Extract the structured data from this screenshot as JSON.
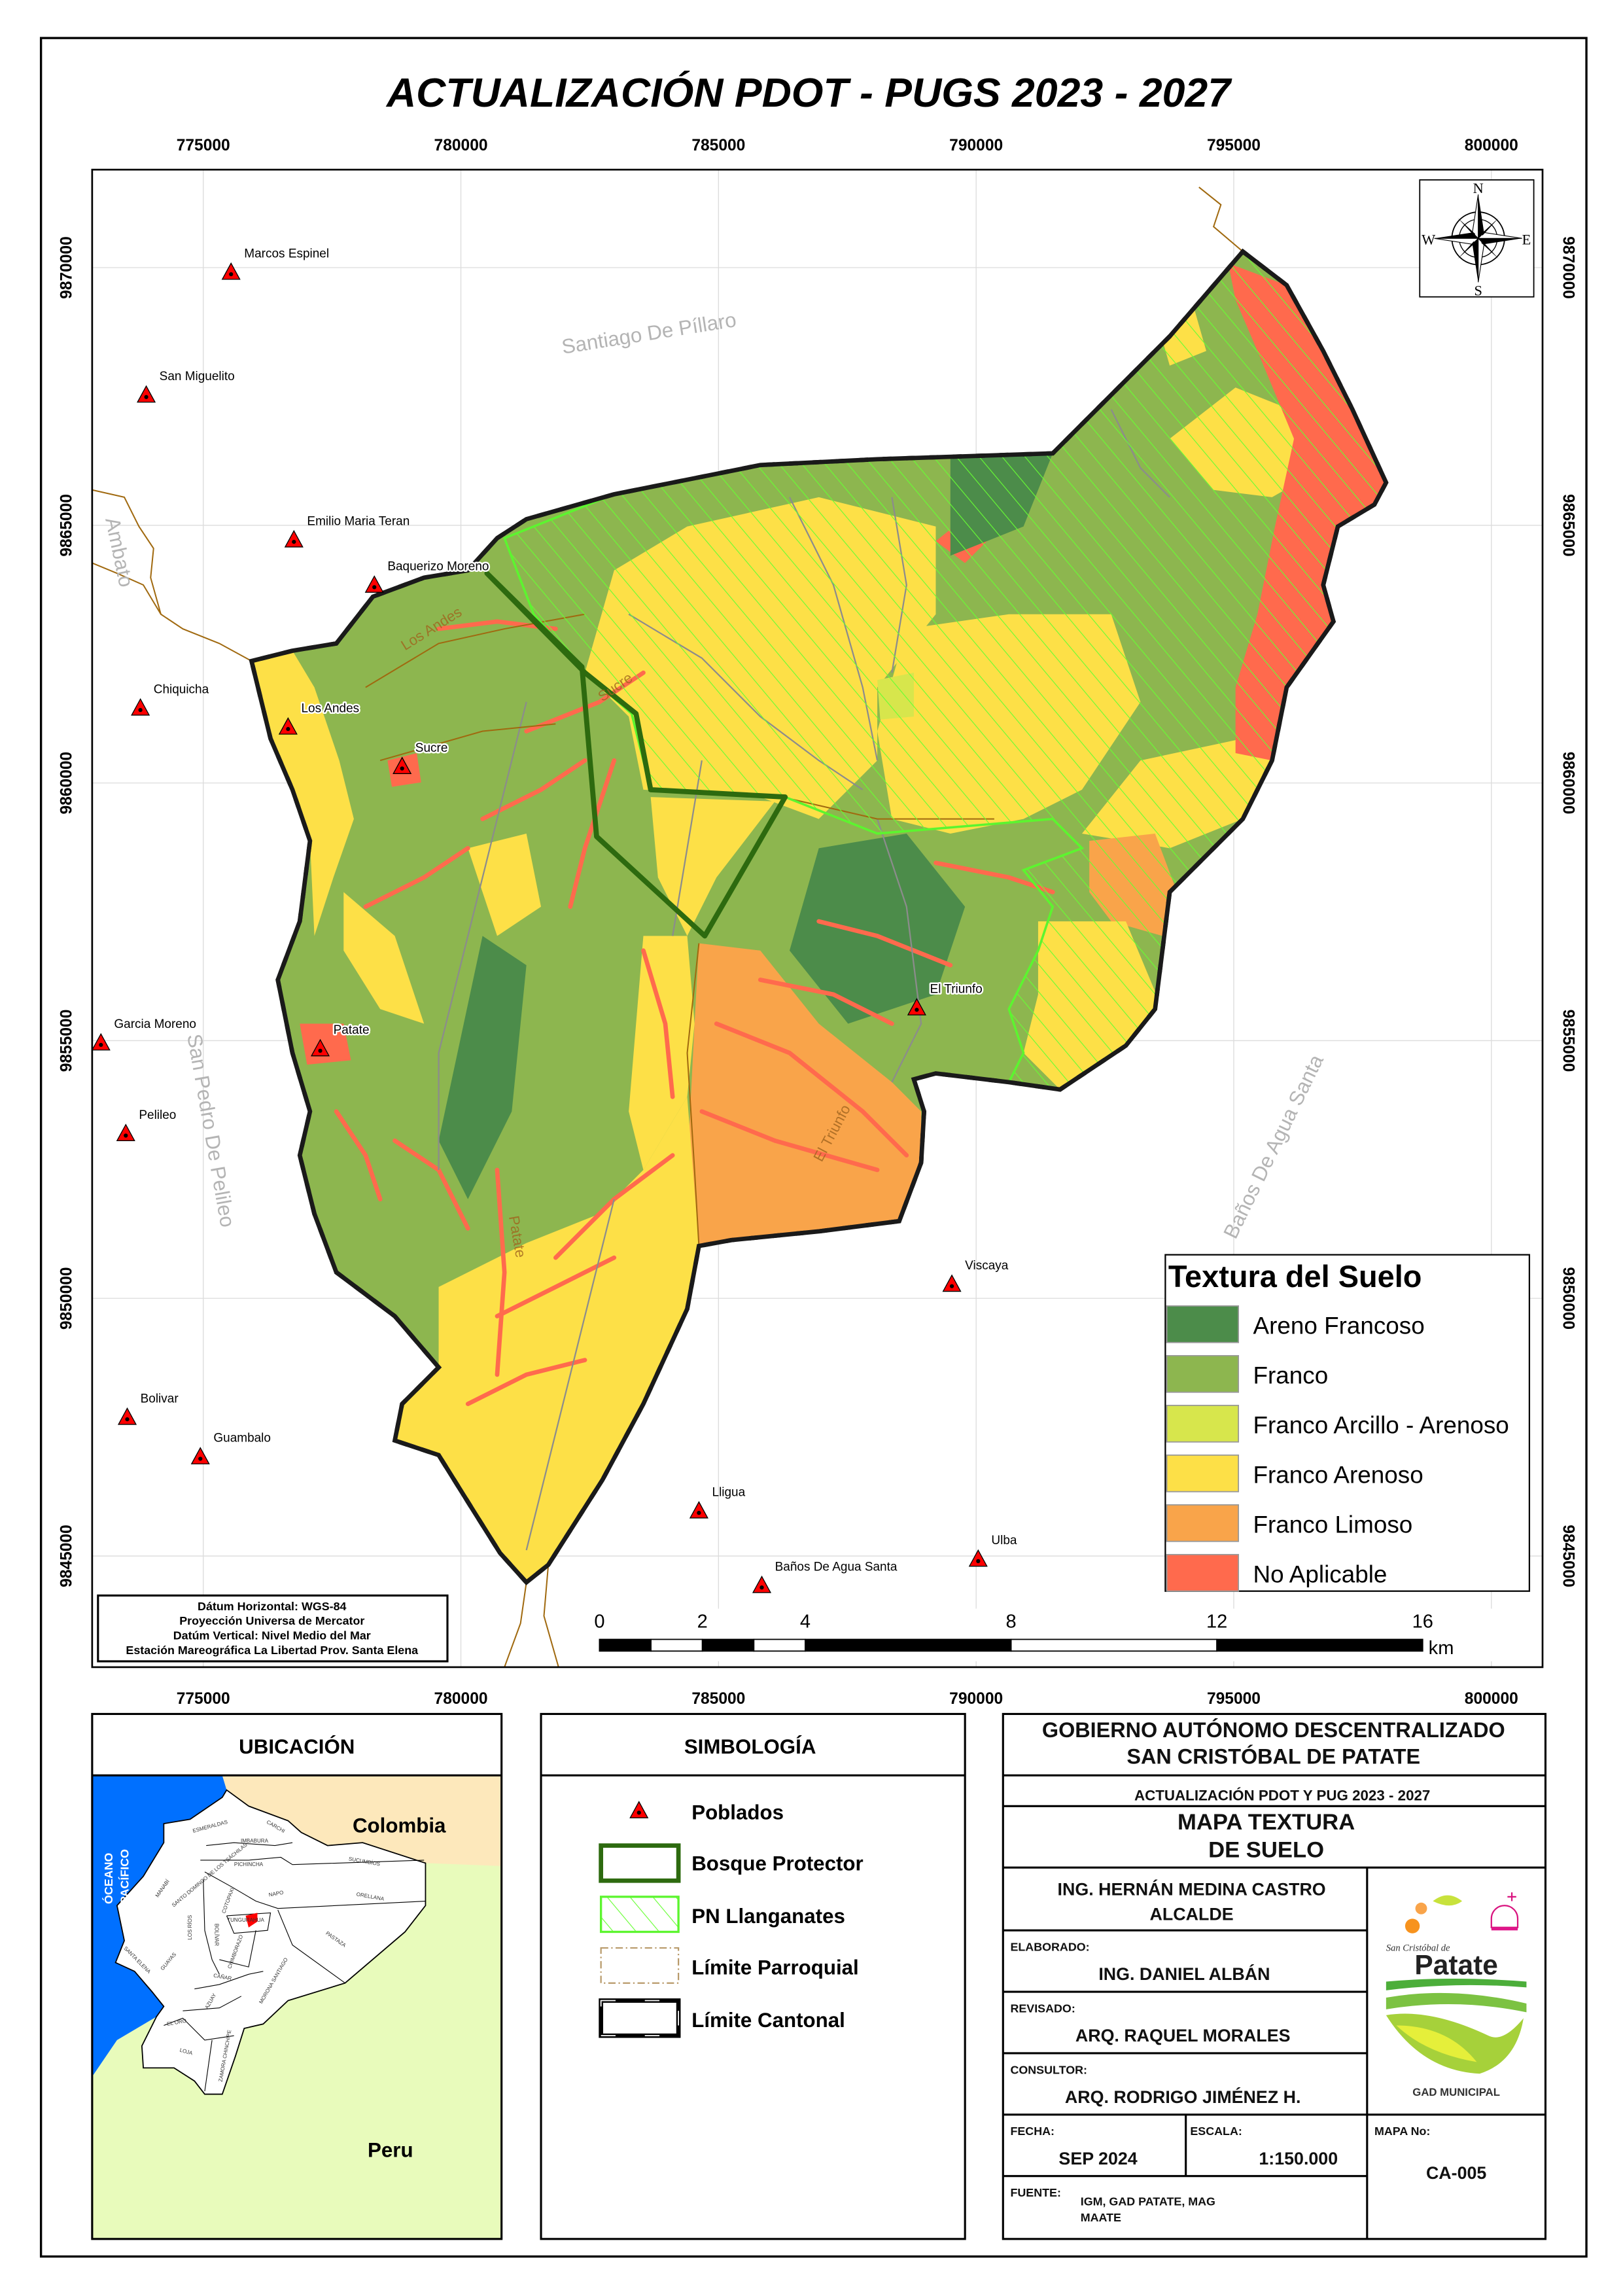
{
  "title": "ACTUALIZACIÓN PDOT - PUGS 2023 - 2027",
  "colors": {
    "areno_francoso": "#4c8c4a",
    "franco": "#8db64f",
    "franco_arcillo_arenoso": "#d7e64c",
    "franco_arenoso": "#fde047",
    "franco_limoso": "#f9a44a",
    "no_aplicable": "#ff6a4d",
    "bosque_protector": "#2d6a0f",
    "pn_llanganates": "#5cf52f",
    "ocean": "#0070ff",
    "colombia": "#fde8bb",
    "peru": "#e8fbbb",
    "tungurahua": "#ff0000"
  },
  "map": {
    "x_ticks": [
      "775000",
      "780000",
      "785000",
      "790000",
      "795000",
      "800000"
    ],
    "y_ticks": [
      "9870000",
      "9865000",
      "9860000",
      "9855000",
      "9850000",
      "9845000"
    ],
    "places": {
      "marcos_espinel": "Marcos Espinel",
      "san_miguelito": "San Miguelito",
      "emilio_maria_teran": "Emilio Maria Teran",
      "baquerizo_moreno": "Baquerizo Moreno",
      "chiquicha": "Chiquicha",
      "los_andes": "Los Andes",
      "sucre": "Sucre",
      "garcia_moreno": "Garcia Moreno",
      "patate": "Patate",
      "pelileo": "Pelileo",
      "el_triunfo": "El Triunfo",
      "viscaya": "Viscaya",
      "bolivar": "Bolivar",
      "guambalo": "Guambalo",
      "lligua": "Lligua",
      "banos": "Baños De Agua Santa",
      "ulba": "Ulba"
    },
    "cantons": {
      "pillaro": "Santiago De Píllaro",
      "ambato": "Ambato",
      "pelileo": "San Pedro De Pelileo",
      "banos": "Baños De Agua Santa"
    },
    "parishes": {
      "los_andes": "Los Andes",
      "sucre": "Sucre",
      "el_triunfo": "El Triunfo",
      "patate": "Patate"
    },
    "north_arrow": {
      "n": "N",
      "s": "S",
      "e": "E",
      "w": "W"
    },
    "datum": [
      "Dátum Horizontal: WGS-84",
      "Proyección Universa de Mercator",
      "Datúm Vertical: Nivel Medio del Mar",
      "Estación Mareográfica La Libertad Prov. Santa Elena"
    ],
    "scale_bar": {
      "labels": [
        "0",
        "2",
        "4",
        "8",
        "12",
        "16"
      ],
      "unit": "km"
    }
  },
  "legend": {
    "title": "Textura del Suelo",
    "items": [
      {
        "label": "Areno Francoso",
        "color": "#4c8c4a"
      },
      {
        "label": "Franco",
        "color": "#8db64f"
      },
      {
        "label": "Franco Arcillo - Arenoso",
        "color": "#d7e64c"
      },
      {
        "label": "Franco Arenoso",
        "color": "#fde047"
      },
      {
        "label": "Franco Limoso",
        "color": "#f9a44a"
      },
      {
        "label": "No Aplicable",
        "color": "#ff6a4d"
      }
    ]
  },
  "ubicacion": {
    "title": "UBICACIÓN",
    "colombia": "Colombia",
    "peru": "Peru",
    "ocean_1": "ÓCEANO",
    "ocean_2": "PACÍFICO",
    "provinces": {
      "esmeraldas": "ESMERALDAS",
      "carchi": "CARCHI",
      "imbabura": "IMBABURA",
      "pichincha": "PICHINCHA",
      "sucumbios": "SUCUMBÍOS",
      "santo_domingo": "SANTO DOMINGO DE LOS TSÁCHILAS",
      "manabi": "MANABÍ",
      "napo": "NAPO",
      "orellana": "ORELLANA",
      "cotopaxi": "COTOPAXI",
      "tungurahua": "TUNGURAHUA",
      "los_rios": "LOS RÍOS",
      "bolivar": "BOLÍVAR",
      "pastaza": "PASTAZA",
      "santa_elena": "SANTA ELENA",
      "guayas": "GUAYAS",
      "chimborazo": "CHIMBORAZO",
      "canar": "CAÑAR",
      "morona": "MORONA SANTIAGO",
      "azuay": "AZUAY",
      "el_oro": "EL ORO",
      "loja": "LOJA",
      "zamora": "ZAMORA CHINCHIPE"
    }
  },
  "simbologia": {
    "title": "SIMBOLOGÍA",
    "items": [
      "Poblados",
      "Bosque Protector",
      "PN Llanganates",
      "Límite Parroquial",
      "Límite Cantonal"
    ]
  },
  "title_block": {
    "org_1": "GOBIERNO AUTÓNOMO DESCENTRALIZADO",
    "org_2": "SAN CRISTÓBAL DE PATATE",
    "project": "ACTUALIZACIÓN PDOT Y PUG 2023 - 2027",
    "map_title_1": "MAPA TEXTURA",
    "map_title_2": "DE SUELO",
    "mayor_name": "ING. HERNÁN MEDINA CASTRO",
    "mayor_role": "ALCALDE",
    "elaborado_label": "ELABORADO:",
    "elaborado": "ING. DANIEL ALBÁN",
    "revisado_label": "REVISADO:",
    "revisado": "ARQ. RAQUEL MORALES",
    "consultor_label": "CONSULTOR:",
    "consultor": "ARQ. RODRIGO JIMÉNEZ H.",
    "fecha_label": "FECHA:",
    "fecha": "SEP 2024",
    "escala_label": "ESCALA:",
    "escala": "1:150.000",
    "mapa_no_label": "MAPA No:",
    "mapa_no": "CA-005",
    "fuente_label": "FUENTE:",
    "fuente_1": "IGM, GAD PATATE, MAG",
    "fuente_2": "MAATE",
    "logo": {
      "script": "San Cristóbal de",
      "name": "Patate",
      "sub": "GAD MUNICIPAL"
    }
  }
}
